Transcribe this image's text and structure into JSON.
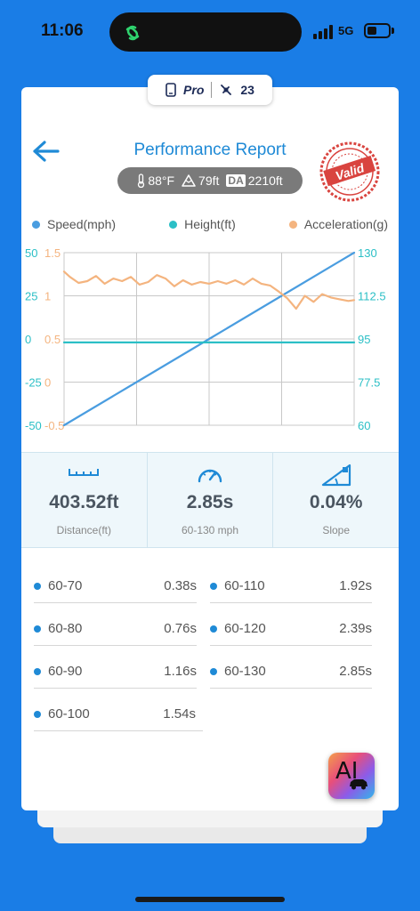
{
  "status": {
    "time": "11:06",
    "network": "5G"
  },
  "badge": {
    "pro_label": "Pro",
    "count": "23"
  },
  "header": {
    "title": "Performance Report",
    "stamp_text": "Valid"
  },
  "conditions": {
    "temperature": "88°F",
    "altitude": "79ft",
    "da_label": "DA",
    "da_value": "2210ft"
  },
  "legend": [
    {
      "label": "Speed(mph)",
      "color": "#4a9de0"
    },
    {
      "label": "Height(ft)",
      "color": "#2bbfc6"
    },
    {
      "label": "Acceleration(g)",
      "color": "#f4b47f"
    }
  ],
  "chart_data": {
    "type": "line",
    "grid": true,
    "axes": {
      "height_left": {
        "ticks": [
          "50",
          "25",
          "0",
          "-25",
          "-50"
        ],
        "range": [
          -50,
          50
        ],
        "color": "#2bbfc6"
      },
      "accel_left": {
        "ticks": [
          "1.5",
          "1",
          "0.5",
          "0",
          "-0.5"
        ],
        "range": [
          -0.5,
          1.5
        ],
        "color": "#f4b47f"
      },
      "speed_right": {
        "ticks": [
          "130",
          "112.5",
          "95",
          "77.5",
          "60"
        ],
        "range": [
          60,
          130
        ],
        "color": "#2bbfc6"
      }
    },
    "series": [
      {
        "name": "Speed(mph)",
        "axis": "speed_right",
        "color": "#4a9de0",
        "x": [
          0,
          0.25,
          0.5,
          0.75,
          1.0
        ],
        "y": [
          60,
          77.5,
          95,
          112.5,
          130
        ]
      },
      {
        "name": "Height(ft)",
        "axis": "height_left",
        "color": "#2bbfc6",
        "x": [
          0,
          1.0
        ],
        "y": [
          -2,
          -2
        ]
      },
      {
        "name": "Acceleration(g)",
        "axis": "accel_left",
        "color": "#f4b47f",
        "x": [
          0,
          0.02,
          0.05,
          0.08,
          0.11,
          0.14,
          0.17,
          0.2,
          0.23,
          0.26,
          0.29,
          0.32,
          0.35,
          0.38,
          0.41,
          0.44,
          0.47,
          0.5,
          0.53,
          0.56,
          0.59,
          0.62,
          0.65,
          0.68,
          0.71,
          0.74,
          0.77,
          0.8,
          0.83,
          0.86,
          0.89,
          0.92,
          0.95,
          0.98,
          1.0
        ],
        "y": [
          1.28,
          1.22,
          1.15,
          1.17,
          1.23,
          1.14,
          1.2,
          1.17,
          1.22,
          1.13,
          1.16,
          1.24,
          1.2,
          1.11,
          1.18,
          1.13,
          1.16,
          1.14,
          1.17,
          1.14,
          1.18,
          1.13,
          1.2,
          1.14,
          1.12,
          1.05,
          0.97,
          0.85,
          1.0,
          0.93,
          1.02,
          0.98,
          0.96,
          0.94,
          0.95
        ]
      }
    ]
  },
  "stats": [
    {
      "value": "403.52ft",
      "label": "Distance(ft)",
      "icon": "ruler-icon"
    },
    {
      "value": "2.85s",
      "label": "60-130 mph",
      "icon": "speedometer-icon"
    },
    {
      "value": "0.04%",
      "label": "Slope",
      "icon": "slope-icon"
    }
  ],
  "splits": [
    {
      "name": "60-70",
      "value": "0.38s"
    },
    {
      "name": "60-110",
      "value": "1.92s"
    },
    {
      "name": "60-80",
      "value": "0.76s"
    },
    {
      "name": "60-120",
      "value": "2.39s"
    },
    {
      "name": "60-90",
      "value": "1.16s"
    },
    {
      "name": "60-130",
      "value": "2.85s"
    },
    {
      "name": "60-100",
      "value": "1.54s"
    }
  ],
  "ai_button": {
    "label": "AI"
  }
}
